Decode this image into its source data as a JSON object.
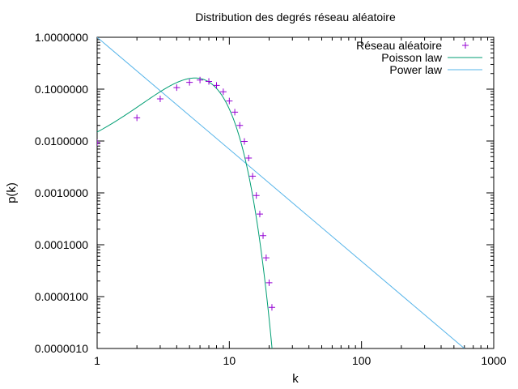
{
  "chart_data": {
    "type": "scatter",
    "title": "Distribution des degrés réseau aléatoire",
    "xlabel": "k",
    "ylabel": "p(k)",
    "x_scale": "log",
    "y_scale": "log",
    "xlim": [
      1,
      1000
    ],
    "ylim": [
      1e-06,
      1
    ],
    "x_ticks": [
      {
        "value": 1,
        "label": "1"
      },
      {
        "value": 10,
        "label": "10"
      },
      {
        "value": 100,
        "label": "100"
      },
      {
        "value": 1000,
        "label": "1000"
      }
    ],
    "y_ticks": [
      {
        "value": 1,
        "label": "1.0000000"
      },
      {
        "value": 0.1,
        "label": "0.1000000"
      },
      {
        "value": 0.01,
        "label": "0.0100000"
      },
      {
        "value": 0.001,
        "label": "0.0010000"
      },
      {
        "value": 0.0001,
        "label": "0.0001000"
      },
      {
        "value": 1e-05,
        "label": "0.0000100"
      },
      {
        "value": 1e-06,
        "label": "0.0000010"
      }
    ],
    "grid": false,
    "legend_position": "top-right",
    "series": [
      {
        "name": "Réseau aléatoire",
        "style": "points",
        "marker": "+",
        "color": "#9400d3",
        "x": [
          1,
          2,
          3,
          4,
          5,
          6,
          7,
          8,
          9,
          10,
          11,
          12,
          13,
          14,
          15,
          16,
          17,
          18,
          19,
          20,
          21
        ],
        "y": [
          0.0093,
          0.028,
          0.065,
          0.107,
          0.135,
          0.15,
          0.141,
          0.118,
          0.089,
          0.059,
          0.036,
          0.02,
          0.0098,
          0.0047,
          0.0021,
          0.00089,
          0.00039,
          0.00015,
          5.6e-05,
          1.85e-05,
          6.2e-06
        ]
      },
      {
        "name": "Poisson law",
        "style": "line",
        "color": "#009e73",
        "lambda": 6
      },
      {
        "name": "Power law",
        "style": "line",
        "color": "#56b4e9",
        "points": [
          [
            1,
            1
          ],
          [
            600,
            1e-06
          ]
        ]
      }
    ]
  }
}
